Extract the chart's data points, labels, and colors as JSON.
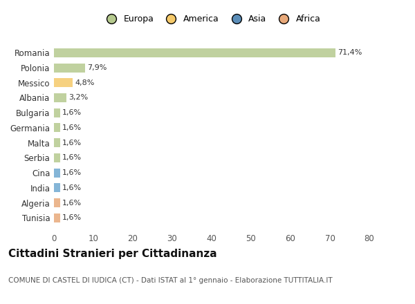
{
  "countries": [
    "Romania",
    "Polonia",
    "Messico",
    "Albania",
    "Bulgaria",
    "Germania",
    "Malta",
    "Serbia",
    "Cina",
    "India",
    "Algeria",
    "Tunisia"
  ],
  "values": [
    71.4,
    7.9,
    4.8,
    3.2,
    1.6,
    1.6,
    1.6,
    1.6,
    1.6,
    1.6,
    1.6,
    1.6
  ],
  "labels": [
    "71,4%",
    "7,9%",
    "4,8%",
    "3,2%",
    "1,6%",
    "1,6%",
    "1,6%",
    "1,6%",
    "1,6%",
    "1,6%",
    "1,6%",
    "1,6%"
  ],
  "colors": [
    "#b5c98e",
    "#b5c98e",
    "#f5c96a",
    "#b5c98e",
    "#b5c98e",
    "#b5c98e",
    "#b5c98e",
    "#b5c98e",
    "#6ea8d0",
    "#6ea8d0",
    "#e8a97a",
    "#e8a97a"
  ],
  "legend_labels": [
    "Europa",
    "America",
    "Asia",
    "Africa"
  ],
  "legend_colors": [
    "#b5c98e",
    "#f5c96a",
    "#5b8db8",
    "#e8a97a"
  ],
  "xlim": [
    0,
    80
  ],
  "xticks": [
    0,
    10,
    20,
    30,
    40,
    50,
    60,
    70,
    80
  ],
  "title": "Cittadini Stranieri per Cittadinanza",
  "subtitle": "COMUNE DI CASTEL DI IUDICA (CT) - Dati ISTAT al 1° gennaio - Elaborazione TUTTITALIA.IT",
  "background_color": "#ffffff",
  "bar_height": 0.6,
  "figsize": [
    6.0,
    4.4
  ],
  "dpi": 100
}
